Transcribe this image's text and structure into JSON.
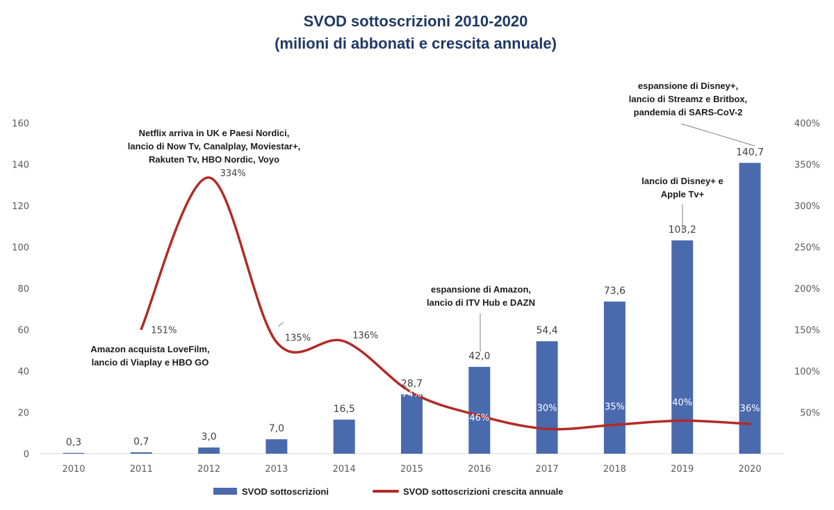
{
  "chart_data": {
    "type": "bar",
    "title_lines": [
      "SVOD sottoscrizioni 2010-2020",
      "(milioni di abbonati e crescita annuale)"
    ],
    "categories": [
      "2010",
      "2011",
      "2012",
      "2013",
      "2014",
      "2015",
      "2016",
      "2017",
      "2018",
      "2019",
      "2020"
    ],
    "series": [
      {
        "name": "SVOD sottoscrizioni",
        "type": "bar",
        "axis": "left",
        "color": "#4a6aae",
        "values": [
          0.3,
          0.7,
          3.0,
          7.0,
          16.5,
          28.7,
          42.0,
          54.4,
          73.6,
          103.2,
          140.7
        ],
        "labels": [
          "0,3",
          "0,7",
          "3,0",
          "7,0",
          "16,5",
          "28,7",
          "42,0",
          "54,4",
          "73,6",
          "103,2",
          "140,7"
        ]
      },
      {
        "name": "SVOD sottoscrizioni crescita annuale",
        "type": "line",
        "axis": "right",
        "color": "#b22a25",
        "values": [
          null,
          151,
          334,
          135,
          136,
          74,
          46,
          30,
          35,
          40,
          36
        ],
        "labels": [
          "",
          "151%",
          "334%",
          "135%",
          "136%",
          "74%",
          "46%",
          "30%",
          "35%",
          "40%",
          "36%"
        ]
      }
    ],
    "y_left": {
      "min": 0,
      "max": 160,
      "ticks": [
        "0",
        "20",
        "40",
        "60",
        "80",
        "100",
        "120",
        "140",
        "160"
      ]
    },
    "y_right": {
      "min": 0,
      "max": 400,
      "ticks": [
        "",
        "50%",
        "100%",
        "150%",
        "200%",
        "250%",
        "300%",
        "350%",
        "400%"
      ]
    },
    "grid": false,
    "legend_position": "bottom",
    "annotations": [
      {
        "category": "2011",
        "lines": [
          "Amazon acquista LoveFilm,",
          "lancio di Viaplay e HBO GO"
        ]
      },
      {
        "category": "2012",
        "lines": [
          "Netflix arriva in UK e Paesi Nordici,",
          "lancio di Now Tv,  Canalplay, Moviestar+,",
          "Rakuten Tv, HBO Nordic, Voyo"
        ]
      },
      {
        "category": "2016",
        "lines": [
          "espansione di Amazon,",
          "lancio di ITV Hub e DAZN"
        ]
      },
      {
        "category": "2019",
        "lines": [
          "lancio di Disney+ e",
          "Apple Tv+"
        ]
      },
      {
        "category": "2020",
        "lines": [
          "espansione di Disney+,",
          "lancio di Streamz e Britbox,",
          "pandemia di SARS-CoV-2"
        ]
      }
    ]
  }
}
